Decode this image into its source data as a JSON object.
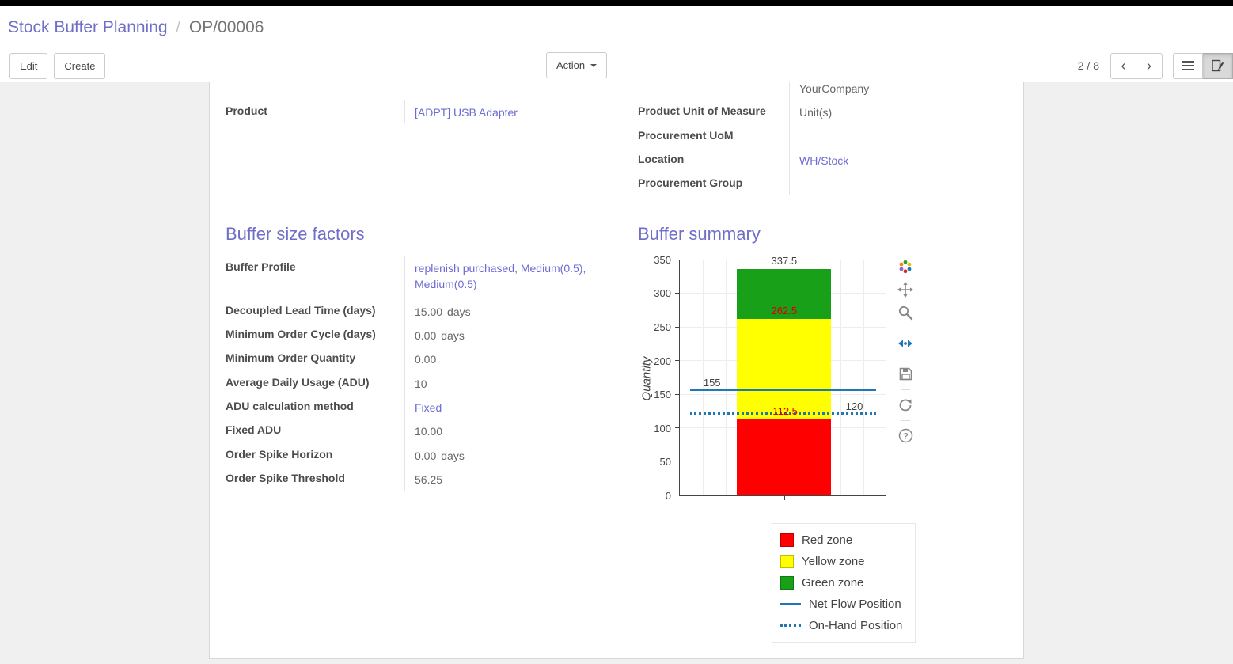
{
  "breadcrumb": {
    "section": "Stock Buffer Planning",
    "separator": "/",
    "record": "OP/00006"
  },
  "controls": {
    "edit": "Edit",
    "create": "Create",
    "action": "Action",
    "pager": "2 / 8"
  },
  "icons": {
    "pager_prev": "prev-chevron-icon",
    "pager_next": "next-chevron-icon",
    "view_list": "list-view-icon",
    "view_form": "form-view-icon",
    "modebar": [
      "plotly-logo-icon",
      "pan-icon",
      "zoom-icon",
      "autoscale-icon",
      "save-icon",
      "reset-axes-icon",
      "help-icon"
    ]
  },
  "colors": {
    "heading": "#6f6ec9",
    "link": "#6b6bd4",
    "red_zone": "#ff0000",
    "yellow_zone": "#ffff00",
    "green_zone": "#18a018",
    "flow_line": "#1f77b4",
    "annotation_red": "#dd0000"
  },
  "sheet": {
    "general": {
      "left": [
        {
          "label": "Product",
          "value": "[ADPT] USB Adapter"
        }
      ],
      "right": [
        {
          "label": "",
          "value": "YourCompany"
        },
        {
          "label": "Product Unit of Measure",
          "value": "Unit(s)"
        },
        {
          "label": "Procurement UoM",
          "value": ""
        },
        {
          "label": "Location",
          "value": "WH/Stock"
        },
        {
          "label": "Procurement Group",
          "value": ""
        }
      ]
    },
    "factors": {
      "title": "Buffer size factors",
      "rows": [
        {
          "label": "Buffer Profile",
          "value": "replenish purchased, Medium(0.5), Medium(0.5)"
        },
        {
          "label": "Decoupled Lead Time (days)",
          "value": "15.00",
          "unit": "days"
        },
        {
          "label": "Minimum Order Cycle (days)",
          "value": "0.00",
          "unit": "days"
        },
        {
          "label": "Minimum Order Quantity",
          "value": "0.00"
        },
        {
          "label": "Average Daily Usage (ADU)",
          "value": "10"
        },
        {
          "label": "ADU calculation method",
          "value": "Fixed"
        },
        {
          "label": "Fixed ADU",
          "value": "10.00"
        },
        {
          "label": "Order Spike Horizon",
          "value": "0.00",
          "unit": "days"
        },
        {
          "label": "Order Spike Threshold",
          "value": "56.25"
        }
      ]
    },
    "summary": {
      "title": "Buffer summary"
    }
  },
  "chart_data": {
    "type": "bar",
    "title": "Buffer summary",
    "xlabel": "",
    "ylabel": "Quantity",
    "ylim": [
      0,
      350
    ],
    "yticks": [
      0,
      50,
      100,
      150,
      200,
      250,
      300,
      350
    ],
    "grid": true,
    "legend_position": "bottom",
    "zones": [
      {
        "name": "Red zone",
        "from": 0,
        "to": 112.5,
        "color": "#ff0000"
      },
      {
        "name": "Yellow zone",
        "from": 112.5,
        "to": 262.5,
        "color": "#ffff00"
      },
      {
        "name": "Green zone",
        "from": 262.5,
        "to": 337.5,
        "color": "#18a018"
      }
    ],
    "lines": [
      {
        "name": "Net Flow Position",
        "value": 155,
        "style": "solid",
        "color": "#1f77b4"
      },
      {
        "name": "On-Hand Position",
        "value": 120,
        "style": "dotted",
        "color": "#1f77b4"
      }
    ],
    "annotations": [
      {
        "text": "337.5",
        "value": 337.5,
        "x": 0.505,
        "color": "#444444"
      },
      {
        "text": "262.5",
        "value": 262.5,
        "x": 0.505,
        "color": "#dd0000"
      },
      {
        "text": "112.5",
        "value": 112.5,
        "x": 0.51,
        "color": "#dd0000"
      },
      {
        "text": "155",
        "value": 155,
        "x": 0.156,
        "color": "#444444"
      },
      {
        "text": "120",
        "value": 120,
        "x": 0.845,
        "color": "#444444"
      }
    ],
    "legend": [
      {
        "label": "Red zone",
        "swatch": "square",
        "color": "#ff0000"
      },
      {
        "label": "Yellow zone",
        "swatch": "square",
        "color": "#ffff00"
      },
      {
        "label": "Green zone",
        "swatch": "square",
        "color": "#18a018"
      },
      {
        "label": "Net Flow Position",
        "swatch": "line",
        "color": "#1f77b4"
      },
      {
        "label": "On-Hand Position",
        "swatch": "dotted",
        "color": "#1f77b4"
      }
    ]
  }
}
